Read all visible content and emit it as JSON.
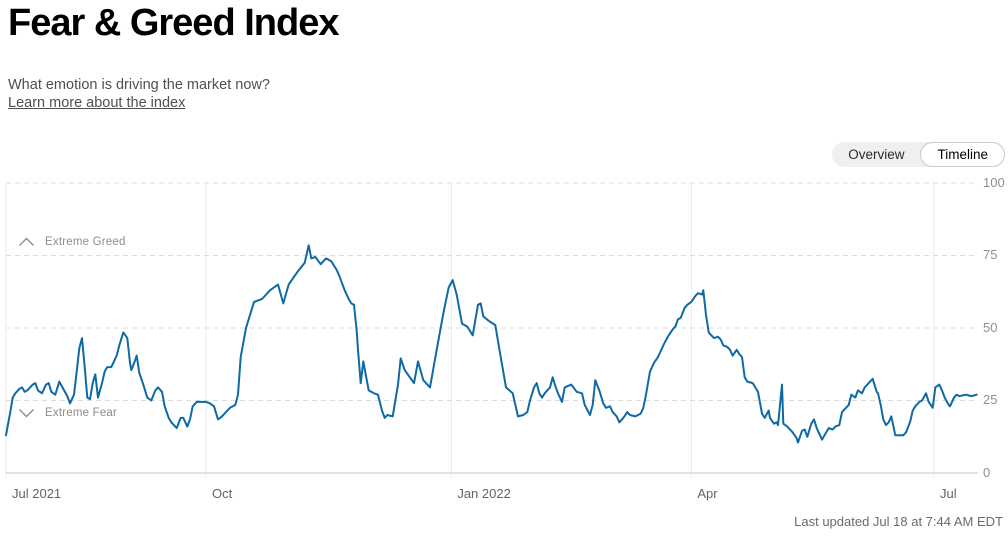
{
  "header": {
    "title": "Fear & Greed Index",
    "subtitle": "What emotion is driving the market now?",
    "learn_more": "Learn more about the index"
  },
  "view_toggle": {
    "options": [
      "Overview",
      "Timeline"
    ],
    "selected": "Timeline"
  },
  "footer": {
    "last_updated": "Last updated Jul 18 at 7:44 AM EDT"
  },
  "chart_data": {
    "type": "line",
    "series_name": "Fear & Greed Index",
    "line_color": "#0f6aa3",
    "grid": {
      "dashed_color": "#dcdcdc",
      "solid_color": "#c4c4c4",
      "vertical_color": "#ececec"
    },
    "x_axis": {
      "start_date": "2021-07-18",
      "end_date": "2022-07-18",
      "tick_labels": [
        "Jul 2021",
        "Oct",
        "Jan 2022",
        "Apr",
        "Jul"
      ],
      "tick_days": [
        0,
        75,
        167,
        257,
        348
      ],
      "domain_days": [
        0,
        365
      ]
    },
    "y_axis": {
      "min": 0,
      "max": 100,
      "ticks": [
        100,
        75,
        50,
        25,
        0
      ]
    },
    "annotations": {
      "extreme_greed": {
        "label": "Extreme Greed",
        "threshold": 75,
        "icon": "chevron-up-icon"
      },
      "extreme_fear": {
        "label": "Extreme Fear",
        "threshold": 25,
        "icon": "chevron-down-icon"
      }
    },
    "points": [
      [
        0,
        13
      ],
      [
        0.8,
        17
      ],
      [
        1.6,
        21
      ],
      [
        2.5,
        26
      ],
      [
        3.5,
        27.5
      ],
      [
        5,
        29
      ],
      [
        6,
        29.5
      ],
      [
        7,
        28
      ],
      [
        8,
        28.5
      ],
      [
        10,
        30.5
      ],
      [
        11,
        31
      ],
      [
        12,
        28.5
      ],
      [
        13.5,
        27.5
      ],
      [
        15,
        30.5
      ],
      [
        16,
        31
      ],
      [
        17,
        28
      ],
      [
        18.5,
        27
      ],
      [
        20,
        31.5
      ],
      [
        21.5,
        29
      ],
      [
        23,
        26.5
      ],
      [
        24,
        24
      ],
      [
        25.5,
        27
      ],
      [
        26.5,
        35
      ],
      [
        27.5,
        43
      ],
      [
        28.5,
        46.5
      ],
      [
        29.5,
        36.5
      ],
      [
        30.5,
        26
      ],
      [
        31.5,
        25.5
      ],
      [
        32.5,
        31
      ],
      [
        33.5,
        34
      ],
      [
        34.5,
        26
      ],
      [
        36,
        31
      ],
      [
        37,
        35
      ],
      [
        38,
        36.5
      ],
      [
        39.5,
        36.5
      ],
      [
        41.5,
        40.5
      ],
      [
        42.5,
        44
      ],
      [
        44,
        48.5
      ],
      [
        45.5,
        46.5
      ],
      [
        46.5,
        38
      ],
      [
        47,
        35.5
      ],
      [
        48.5,
        39
      ],
      [
        49,
        40.5
      ],
      [
        50,
        34.5
      ],
      [
        51.5,
        30.5
      ],
      [
        53,
        26
      ],
      [
        54.5,
        25
      ],
      [
        56,
        28.5
      ],
      [
        57,
        29.5
      ],
      [
        58.5,
        28
      ],
      [
        59.5,
        23
      ],
      [
        61,
        19
      ],
      [
        62,
        17.5
      ],
      [
        63.5,
        16
      ],
      [
        64,
        15.5
      ],
      [
        65.5,
        19
      ],
      [
        66.5,
        19
      ],
      [
        68,
        16
      ],
      [
        69,
        18.5
      ],
      [
        70,
        23
      ],
      [
        71.5,
        24.5
      ],
      [
        73,
        24.5
      ],
      [
        75,
        24.5
      ],
      [
        76.5,
        24
      ],
      [
        78,
        23
      ],
      [
        79.5,
        18.5
      ],
      [
        81,
        19.5
      ],
      [
        82.5,
        21
      ],
      [
        84,
        22.5
      ],
      [
        86,
        23.5
      ],
      [
        87,
        27
      ],
      [
        88,
        40
      ],
      [
        90,
        50
      ],
      [
        93,
        59
      ],
      [
        96,
        60
      ],
      [
        99,
        63
      ],
      [
        102,
        65
      ],
      [
        104,
        58.5
      ],
      [
        106,
        65
      ],
      [
        109,
        69
      ],
      [
        112,
        72.5
      ],
      [
        113.5,
        78.5
      ],
      [
        114.5,
        74
      ],
      [
        116,
        74.5
      ],
      [
        118,
        72
      ],
      [
        120,
        74
      ],
      [
        122,
        73
      ],
      [
        124,
        70
      ],
      [
        125,
        68
      ],
      [
        127,
        63
      ],
      [
        128.5,
        60
      ],
      [
        129.5,
        58.5
      ],
      [
        130.5,
        58
      ],
      [
        131.5,
        49
      ],
      [
        132,
        42.5
      ],
      [
        133,
        31
      ],
      [
        134,
        38.5
      ],
      [
        136,
        28.5
      ],
      [
        138,
        27.5
      ],
      [
        139.5,
        27
      ],
      [
        141,
        21.5
      ],
      [
        142,
        19
      ],
      [
        143,
        20
      ],
      [
        145,
        19.5
      ],
      [
        147,
        30.5
      ],
      [
        148,
        39.5
      ],
      [
        149.5,
        35.5
      ],
      [
        153,
        31
      ],
      [
        154.5,
        38.5
      ],
      [
        156.5,
        32
      ],
      [
        159,
        29.5
      ],
      [
        161.5,
        42.5
      ],
      [
        164,
        55
      ],
      [
        166,
        64
      ],
      [
        167.5,
        66.5
      ],
      [
        169,
        61.5
      ],
      [
        171,
        51.5
      ],
      [
        173,
        50.5
      ],
      [
        175,
        47.5
      ],
      [
        177,
        58
      ],
      [
        178,
        58.5
      ],
      [
        179,
        54
      ],
      [
        181,
        52.5
      ],
      [
        183.5,
        51
      ],
      [
        185.5,
        40
      ],
      [
        187.5,
        29.5
      ],
      [
        190,
        27.5
      ],
      [
        192,
        19.5
      ],
      [
        194,
        20
      ],
      [
        195.5,
        21
      ],
      [
        196.5,
        25
      ],
      [
        198,
        29.5
      ],
      [
        199,
        31
      ],
      [
        200,
        27.5
      ],
      [
        201,
        26
      ],
      [
        202,
        27.5
      ],
      [
        204,
        29.5
      ],
      [
        205,
        33
      ],
      [
        206,
        30
      ],
      [
        207,
        27.5
      ],
      [
        208.5,
        24.5
      ],
      [
        209.5,
        29.5
      ],
      [
        212,
        30.5
      ],
      [
        214,
        28
      ],
      [
        216,
        27.5
      ],
      [
        217,
        23.5
      ],
      [
        219,
        20
      ],
      [
        220,
        23.5
      ],
      [
        221,
        32
      ],
      [
        222.5,
        28.5
      ],
      [
        224,
        24
      ],
      [
        225,
        22.5
      ],
      [
        226.5,
        23
      ],
      [
        227.5,
        21
      ],
      [
        229,
        19.5
      ],
      [
        230,
        17.5
      ],
      [
        231.5,
        19
      ],
      [
        233,
        21
      ],
      [
        234,
        20
      ],
      [
        236,
        19.5
      ],
      [
        238,
        20.5
      ],
      [
        239,
        22.5
      ],
      [
        240,
        27
      ],
      [
        241.5,
        35
      ],
      [
        243,
        38
      ],
      [
        244.5,
        40
      ],
      [
        246,
        43
      ],
      [
        247,
        45
      ],
      [
        248.5,
        47.5
      ],
      [
        250,
        49.5
      ],
      [
        251,
        50.5
      ],
      [
        252,
        53
      ],
      [
        253,
        53.5
      ],
      [
        254.5,
        57
      ],
      [
        255.5,
        58
      ],
      [
        257,
        59
      ],
      [
        258.5,
        61
      ],
      [
        259.5,
        62
      ],
      [
        261,
        61.5
      ],
      [
        261.5,
        63
      ],
      [
        262.5,
        54.5
      ],
      [
        263.5,
        48.5
      ],
      [
        264.5,
        47.5
      ],
      [
        265.5,
        46.5
      ],
      [
        267,
        47
      ],
      [
        268,
        46
      ],
      [
        269,
        44
      ],
      [
        270.5,
        43.5
      ],
      [
        271.5,
        42.5
      ],
      [
        272.5,
        40.5
      ],
      [
        274,
        42.5
      ],
      [
        275,
        41
      ],
      [
        276,
        40
      ],
      [
        277,
        33
      ],
      [
        278,
        31.5
      ],
      [
        280,
        31
      ],
      [
        281,
        29.5
      ],
      [
        282,
        28
      ],
      [
        283.5,
        20.5
      ],
      [
        284.5,
        19
      ],
      [
        286,
        21.5
      ],
      [
        286.5,
        19
      ],
      [
        288,
        17
      ],
      [
        289,
        17.5
      ],
      [
        289.5,
        16.5
      ],
      [
        291,
        30.5
      ],
      [
        291.5,
        17
      ],
      [
        293,
        16
      ],
      [
        295,
        14
      ],
      [
        296.5,
        12
      ],
      [
        297,
        10.5
      ],
      [
        298.5,
        14.5
      ],
      [
        299.5,
        15
      ],
      [
        300.5,
        12.5
      ],
      [
        302,
        17
      ],
      [
        303,
        18.5
      ],
      [
        304,
        15.5
      ],
      [
        306,
        11.5
      ],
      [
        308.5,
        15.5
      ],
      [
        310,
        15
      ],
      [
        311,
        16
      ],
      [
        312.5,
        16.5
      ],
      [
        313.5,
        21
      ],
      [
        315,
        22.5
      ],
      [
        316,
        23.5
      ],
      [
        317,
        27
      ],
      [
        318.5,
        26
      ],
      [
        319.5,
        28.5
      ],
      [
        321,
        27.5
      ],
      [
        322,
        29.5
      ],
      [
        323.5,
        31
      ],
      [
        325,
        32.5
      ],
      [
        326.5,
        28
      ],
      [
        327,
        27.5
      ],
      [
        328,
        23.5
      ],
      [
        329,
        18.5
      ],
      [
        330,
        16.5
      ],
      [
        331,
        17.5
      ],
      [
        332,
        19.5
      ],
      [
        333.5,
        13
      ],
      [
        334.5,
        13
      ],
      [
        336.5,
        13
      ],
      [
        337.5,
        14
      ],
      [
        339,
        17.5
      ],
      [
        340,
        21.5
      ],
      [
        341,
        23
      ],
      [
        342.5,
        24.5
      ],
      [
        343.5,
        25
      ],
      [
        345,
        27.5
      ],
      [
        346,
        24.5
      ],
      [
        347.5,
        22.5
      ],
      [
        348.5,
        29.5
      ],
      [
        350,
        30.5
      ],
      [
        351,
        28.5
      ],
      [
        352,
        26
      ],
      [
        353.5,
        23.5
      ],
      [
        354,
        23
      ],
      [
        355.5,
        26
      ],
      [
        356.5,
        27
      ],
      [
        357.5,
        26.5
      ],
      [
        360,
        27
      ],
      [
        362,
        26.5
      ],
      [
        364,
        27
      ]
    ]
  }
}
